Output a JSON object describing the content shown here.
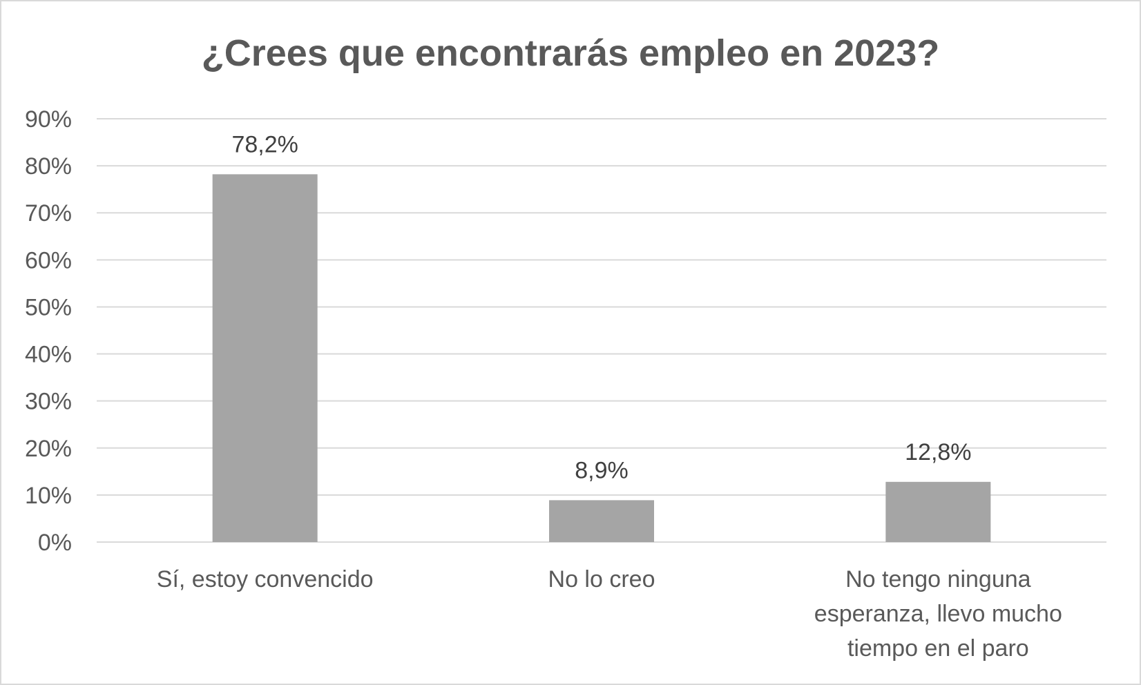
{
  "chart_data": {
    "type": "bar",
    "title": "¿Crees que encontrarás empleo en 2023?",
    "categories": [
      [
        "Sí, estoy convencido"
      ],
      [
        "No lo creo"
      ],
      [
        "No tengo ninguna",
        "esperanza, llevo mucho",
        "tiempo en el paro"
      ]
    ],
    "values": [
      78.2,
      8.9,
      12.8
    ],
    "data_labels": [
      "78,2%",
      "8,9%",
      "12,8%"
    ],
    "ylim": [
      0,
      90
    ],
    "yticks": [
      0,
      10,
      20,
      30,
      40,
      50,
      60,
      70,
      80,
      90
    ],
    "ytick_labels": [
      "0%",
      "10%",
      "20%",
      "30%",
      "40%",
      "50%",
      "60%",
      "70%",
      "80%",
      "90%"
    ],
    "grid": true,
    "legend": "none",
    "xlabel": "",
    "ylabel": "",
    "colors": {
      "bar": "#a5a5a5",
      "grid": "#d9d9d9",
      "text": "#595959",
      "title": "#595959"
    }
  }
}
